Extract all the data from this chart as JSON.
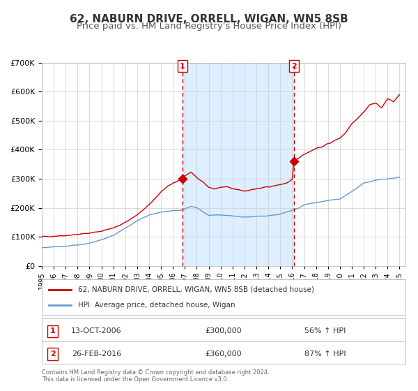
{
  "title": "62, NABURN DRIVE, ORRELL, WIGAN, WN5 8SB",
  "subtitle": "Price paid vs. HM Land Registry's House Price Index (HPI)",
  "legend_line1": "62, NABURN DRIVE, ORRELL, WIGAN, WN5 8SB (detached house)",
  "legend_line2": "HPI: Average price, detached house, Wigan",
  "table_row1_num": "1",
  "table_row1_date": "13-OCT-2006",
  "table_row1_price": "£300,000",
  "table_row1_hpi": "56% ↑ HPI",
  "table_row2_num": "2",
  "table_row2_date": "26-FEB-2016",
  "table_row2_price": "£360,000",
  "table_row2_hpi": "87% ↑ HPI",
  "footnote1": "Contains HM Land Registry data © Crown copyright and database right 2024.",
  "footnote2": "This data is licensed under the Open Government Licence v3.0.",
  "sale1_date": 2006.79,
  "sale1_price": 300000,
  "sale2_date": 2016.15,
  "sale2_price": 360000,
  "red_line_color": "#cc0000",
  "blue_line_color": "#6699cc",
  "shade_color": "#ddeeff",
  "dashed_line_color": "#cc0000",
  "background_color": "#ffffff",
  "plot_background": "#ffffff",
  "grid_color": "#cccccc",
  "ylim": [
    0,
    700000
  ],
  "xlim_start": 1995.0,
  "xlim_end": 2025.5,
  "title_fontsize": 11,
  "subtitle_fontsize": 9.5
}
